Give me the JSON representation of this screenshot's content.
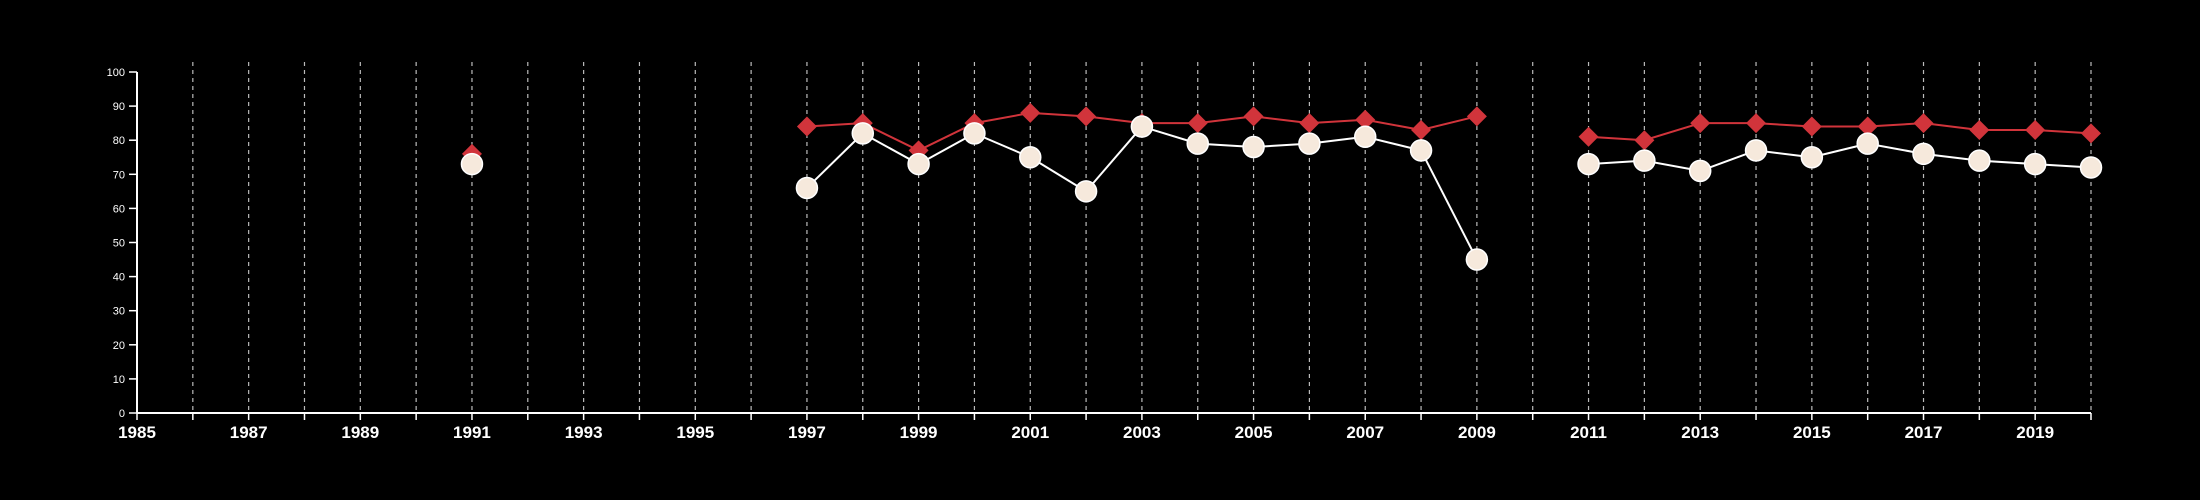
{
  "chart_data": {
    "type": "line",
    "title": "",
    "xlabel": "",
    "ylabel": "",
    "xlim": [
      1985,
      2020
    ],
    "ylim": [
      0,
      100
    ],
    "x_ticks_labeled": [
      1985,
      1987,
      1989,
      1991,
      1993,
      1995,
      1997,
      1999,
      2001,
      2003,
      2005,
      2007,
      2009,
      2011,
      2013,
      2015,
      2017,
      2019
    ],
    "y_ticks": [
      0,
      10,
      20,
      30,
      40,
      50,
      60,
      70,
      80,
      90,
      100
    ],
    "grid": "vertical-dashed",
    "legend": "none",
    "colors": {
      "background": "#000000",
      "axis": "#ffffff",
      "grid": "#bbbbbb",
      "red_series": "#d1343b",
      "cream_series": "#f6e9dc",
      "cream_outline": "#ffffff"
    },
    "series": [
      {
        "marker": "diamond",
        "color": "#d1343b",
        "points": [
          [
            1991,
            76
          ],
          [
            1997,
            84
          ],
          [
            1998,
            85
          ],
          [
            1999,
            77
          ],
          [
            2000,
            85
          ],
          [
            2001,
            88
          ],
          [
            2002,
            87
          ],
          [
            2003,
            85
          ],
          [
            2004,
            85
          ],
          [
            2005,
            87
          ],
          [
            2006,
            85
          ],
          [
            2007,
            86
          ],
          [
            2008,
            83
          ],
          [
            2009,
            87
          ],
          [
            2011,
            81
          ],
          [
            2012,
            80
          ],
          [
            2013,
            85
          ],
          [
            2014,
            85
          ],
          [
            2015,
            84
          ],
          [
            2016,
            84
          ],
          [
            2017,
            85
          ],
          [
            2018,
            83
          ],
          [
            2019,
            83
          ],
          [
            2020,
            82
          ]
        ]
      },
      {
        "marker": "circle",
        "color": "#f6e9dc",
        "points": [
          [
            1991,
            73
          ],
          [
            1997,
            66
          ],
          [
            1998,
            82
          ],
          [
            1999,
            73
          ],
          [
            2000,
            82
          ],
          [
            2001,
            75
          ],
          [
            2002,
            65
          ],
          [
            2003,
            84
          ],
          [
            2004,
            79
          ],
          [
            2005,
            78
          ],
          [
            2006,
            79
          ],
          [
            2007,
            81
          ],
          [
            2008,
            77
          ],
          [
            2009,
            45
          ],
          [
            2011,
            73
          ],
          [
            2012,
            74
          ],
          [
            2013,
            71
          ],
          [
            2014,
            77
          ],
          [
            2015,
            75
          ],
          [
            2016,
            79
          ],
          [
            2017,
            76
          ],
          [
            2018,
            74
          ],
          [
            2019,
            73
          ],
          [
            2020,
            72
          ]
        ]
      }
    ]
  }
}
